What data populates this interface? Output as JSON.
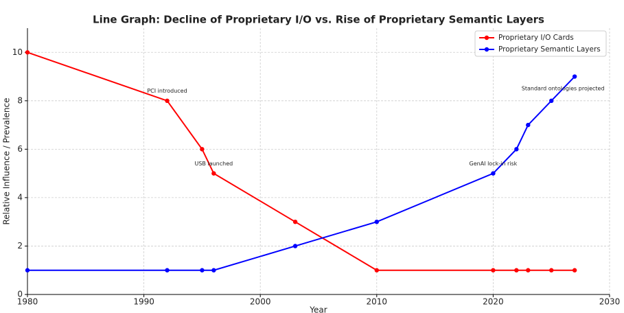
{
  "chart_data": {
    "type": "line",
    "title": "Line Graph: Decline of Proprietary I/O vs. Rise of Proprietary Semantic Layers",
    "x_label": "Year",
    "y_label": "Relative Influence / Prevalence",
    "x": [
      1980,
      1992,
      1995,
      1996,
      2003,
      2010,
      2020,
      2022,
      2023,
      2025,
      2027
    ],
    "series": [
      {
        "name": "Proprietary I/O Cards",
        "color": "#ff0000",
        "values": [
          10,
          8,
          6,
          5,
          3,
          1,
          1,
          1,
          1,
          1,
          1
        ]
      },
      {
        "name": "Proprietary Semantic Layers",
        "color": "#0000ff",
        "values": [
          1,
          1,
          1,
          1,
          2,
          3,
          5,
          6,
          7,
          8,
          9
        ]
      }
    ],
    "annotations": [
      {
        "text": "PCI introduced",
        "x": 1992,
        "y": 8.4
      },
      {
        "text": "USB launched",
        "x": 1996,
        "y": 5.4
      },
      {
        "text": "GenAI lock-in risk",
        "x": 2020,
        "y": 5.4
      },
      {
        "text": "Standard ontologies projected",
        "x": 2026,
        "y": 8.5
      }
    ],
    "xlim": [
      1980,
      2030
    ],
    "ylim": [
      0,
      11
    ],
    "xticks": [
      1980,
      1990,
      2000,
      2010,
      2020,
      2030
    ],
    "yticks": [
      0,
      2,
      4,
      6,
      8,
      10
    ],
    "grid": true,
    "legend": "upper right"
  }
}
